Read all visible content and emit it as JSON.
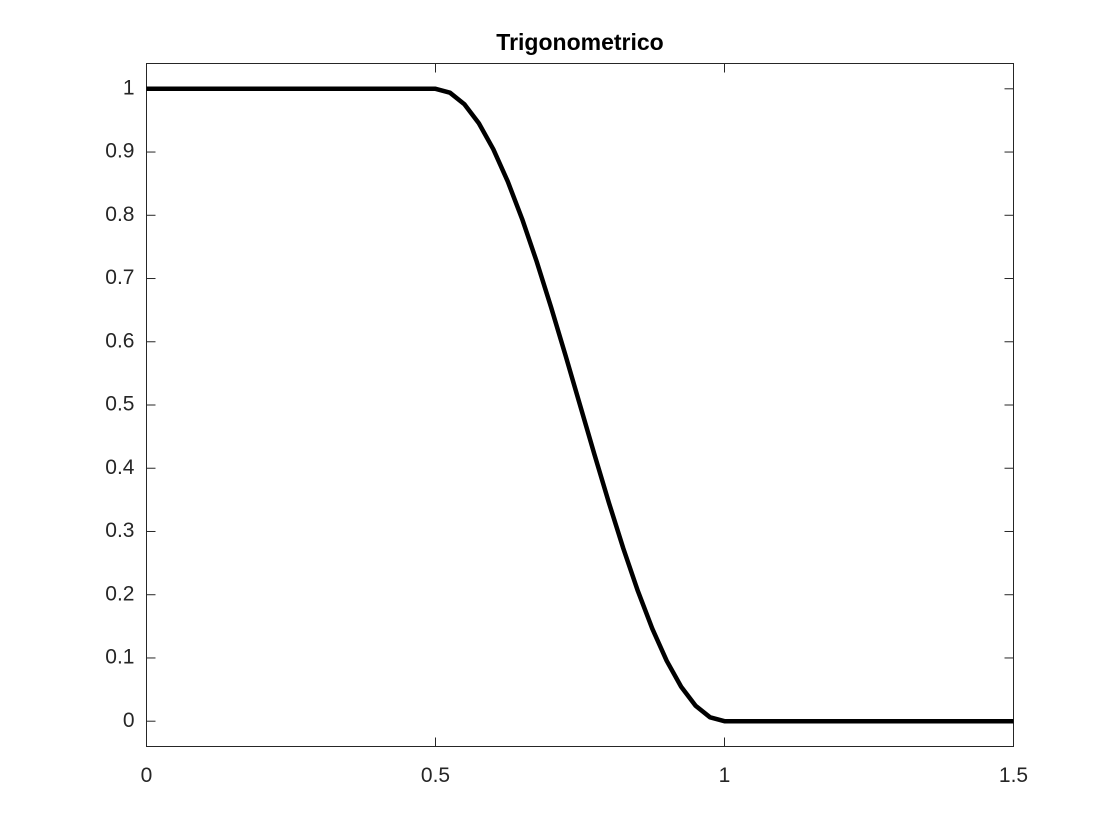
{
  "chart_data": {
    "type": "line",
    "title": "Trigonometrico",
    "x": [
      0,
      0.5,
      0.525,
      0.55,
      0.575,
      0.6,
      0.625,
      0.65,
      0.675,
      0.7,
      0.725,
      0.75,
      0.775,
      0.8,
      0.825,
      0.85,
      0.875,
      0.9,
      0.925,
      0.95,
      0.975,
      1,
      1.5
    ],
    "series": [
      {
        "color": "#000000",
        "values": [
          1,
          1,
          0.99384,
          0.97553,
          0.9455,
          0.90451,
          0.85355,
          0.79389,
          0.727,
          0.65451,
          0.57822,
          0.5,
          0.42178,
          0.34549,
          0.273,
          0.20611,
          0.14645,
          0.09549,
          0.0545,
          0.02447,
          0.00616,
          0,
          0
        ]
      }
    ],
    "xlim": [
      0,
      1.5
    ],
    "xticks": [
      0,
      0.5,
      1,
      1.5
    ],
    "ylim": [
      -0.04,
      1.04
    ],
    "yticks": [
      0,
      0.1,
      0.2,
      0.3,
      0.4,
      0.5,
      0.6,
      0.7,
      0.8,
      0.9,
      1
    ]
  }
}
